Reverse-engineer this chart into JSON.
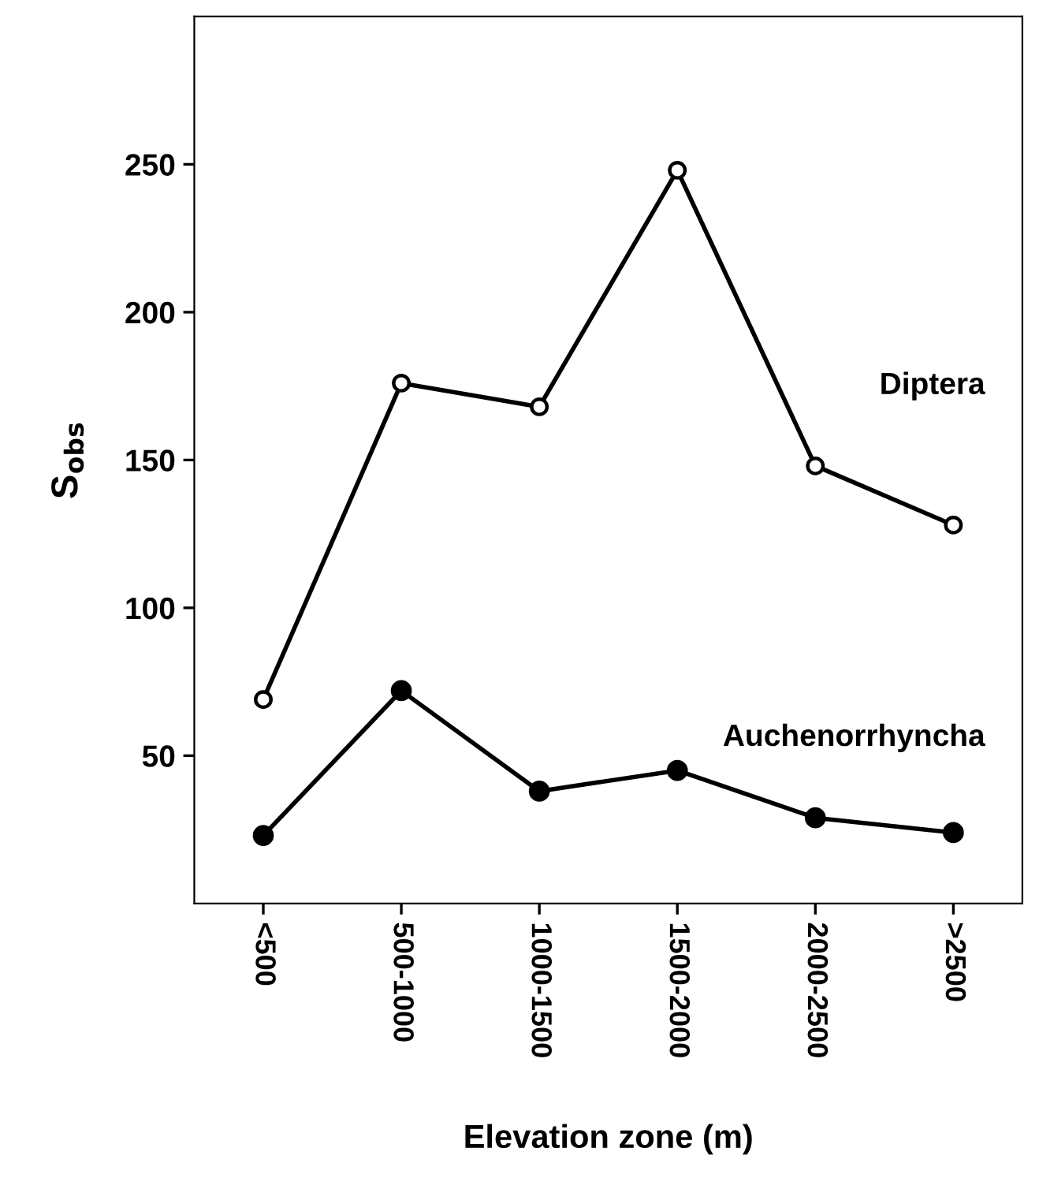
{
  "chart_data": {
    "type": "line",
    "xlabel": "Elevation zone (m)",
    "ylabel": "S$_{obs}$",
    "categories": [
      "<500",
      "500-1000",
      "1000-1500",
      "1500-2000",
      "2000-2500",
      ">2500"
    ],
    "series": [
      {
        "name": "Diptera",
        "color": "#000000",
        "values": [
          69,
          176,
          168,
          248,
          148,
          128
        ]
      },
      {
        "name": "Auchenorrhyncha",
        "color": "#000000",
        "values": [
          23,
          72,
          38,
          45,
          29,
          24
        ]
      }
    ],
    "ylim": [
      0,
      300
    ],
    "yticks": [
      50,
      100,
      150,
      200,
      250
    ],
    "grid": false,
    "legend": false,
    "marker": "circle",
    "line_style": "solid"
  }
}
